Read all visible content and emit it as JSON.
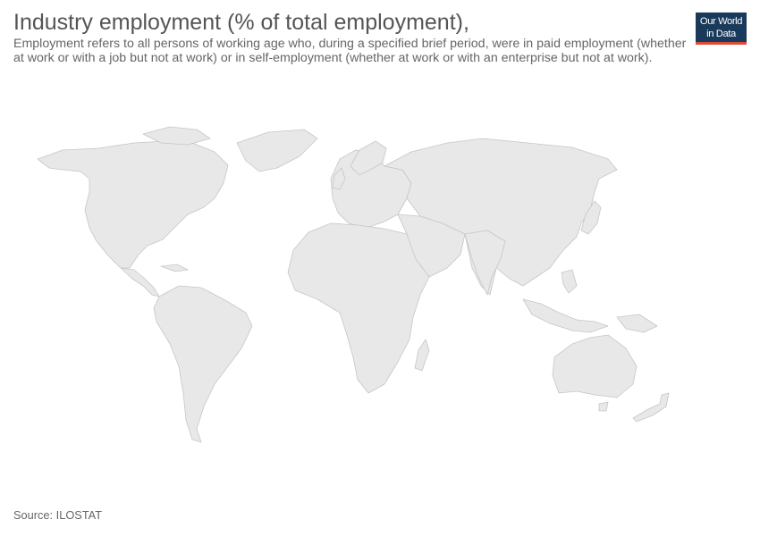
{
  "header": {
    "title": "Industry employment (% of total employment),",
    "subtitle": "Employment refers to all persons of working age who, during a specified brief period, were in paid employment (whether at work or with a job but not at work) or in self-employment (whether at work or with an enterprise but not at work)."
  },
  "logo": {
    "line1": "Our World",
    "line2": "in Data",
    "bg_color": "#1a3a5c",
    "accent_color": "#dd4a37"
  },
  "map": {
    "fill_color": "#e8e8e8",
    "border_color": "#c6c6c6"
  },
  "footer": {
    "source": "Source: ILOSTAT"
  }
}
